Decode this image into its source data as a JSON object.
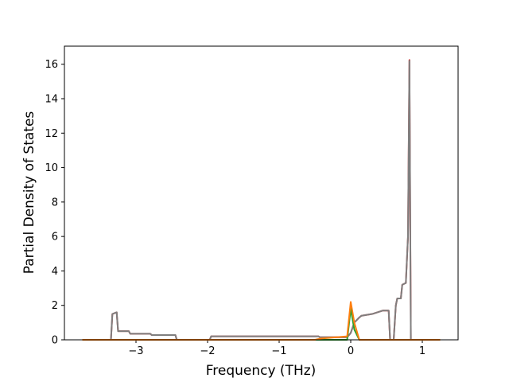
{
  "chart_data": {
    "type": "line",
    "xlabel": "Frequency (THz)",
    "ylabel": "Partial Density of States",
    "x": [
      -3.75,
      -3.35,
      -3.33,
      -3.27,
      -3.25,
      -3.1,
      -3.08,
      -2.8,
      -2.78,
      -2.45,
      -2.43,
      -1.97,
      -1.95,
      -0.5,
      -0.45,
      -0.43,
      -0.05,
      0.0,
      0.05,
      0.12,
      0.15,
      0.3,
      0.45,
      0.53,
      0.55,
      0.6,
      0.63,
      0.65,
      0.7,
      0.72,
      0.77,
      0.8,
      0.82,
      0.84,
      1.25
    ],
    "series": [
      {
        "color": "#d62728",
        "values": [
          0,
          0,
          1.5,
          1.6,
          0.5,
          0.5,
          0.35,
          0.35,
          0.28,
          0.28,
          0,
          0,
          0.2,
          0.2,
          0.2,
          0.15,
          0.15,
          0.4,
          1.0,
          1.3,
          1.4,
          1.5,
          1.7,
          1.7,
          0,
          0,
          2.0,
          2.4,
          2.4,
          3.2,
          3.3,
          6,
          16.25,
          0,
          0
        ]
      },
      {
        "color": "#7f7f7f",
        "values": [
          0,
          0,
          1.5,
          1.6,
          0.5,
          0.5,
          0.35,
          0.35,
          0.28,
          0.28,
          0,
          0,
          0.2,
          0.2,
          0.2,
          0.15,
          0.15,
          0.4,
          1.0,
          1.3,
          1.4,
          1.5,
          1.7,
          1.7,
          0,
          0,
          2.0,
          2.4,
          2.4,
          3.2,
          3.3,
          6,
          16.2,
          0,
          0
        ]
      },
      {
        "color": "#2ca02c",
        "values": [
          0,
          0,
          0,
          0,
          0,
          0,
          0,
          0,
          0,
          0,
          0,
          0,
          0,
          0,
          0,
          0,
          0,
          1.8,
          0.6,
          0,
          0,
          0,
          0,
          0,
          0,
          0,
          0,
          0,
          0,
          0,
          0,
          0,
          0,
          0,
          0
        ]
      },
      {
        "color": "#ff7f0e",
        "values": [
          0,
          0,
          0,
          0,
          0,
          0,
          0,
          0,
          0,
          0,
          0,
          0,
          0,
          0,
          0.05,
          0.07,
          0.2,
          2.2,
          1.0,
          0,
          0,
          0,
          0,
          0,
          0,
          0,
          0,
          0,
          0,
          0,
          0,
          0,
          0,
          0,
          0
        ]
      }
    ],
    "xlim": [
      -4.0,
      1.5
    ],
    "xticks": [
      {
        "value": -3,
        "label": "−3"
      },
      {
        "value": -2,
        "label": "−2"
      },
      {
        "value": -1,
        "label": "−1"
      },
      0,
      1
    ],
    "ylim": [
      0,
      17.05
    ],
    "yticks": [
      0,
      2,
      4,
      6,
      8,
      10,
      12,
      14,
      16
    ]
  }
}
